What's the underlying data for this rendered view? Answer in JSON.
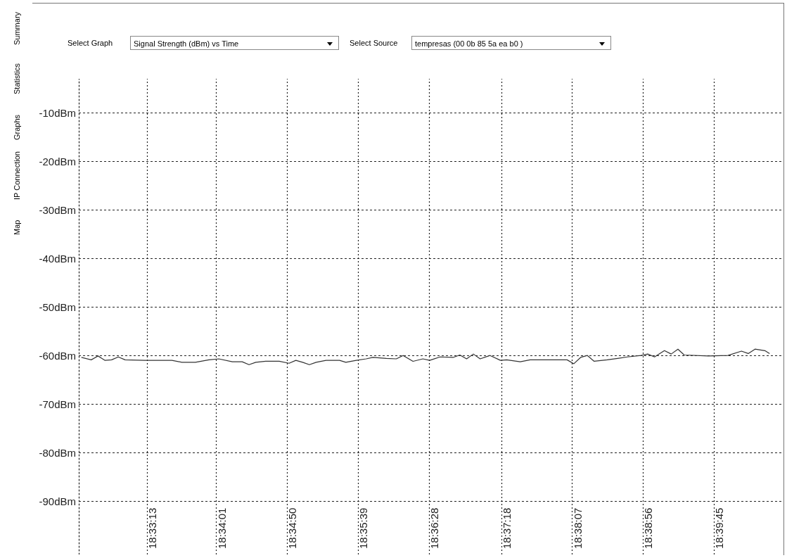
{
  "chart_data": {
    "type": "line",
    "annotations": [
      "Select Graph",
      "Signal Strength (dBm) vs Time",
      "Select Source",
      "tempresas (00 0b 85 5a ea b0 )",
      "Summary",
      "Statistics",
      "Graphs",
      "IP Connection",
      "Map"
    ],
    "x": [
      18.541,
      18.5429,
      18.5442,
      18.5455,
      18.5468,
      18.5481,
      18.5494,
      18.5532,
      18.5584,
      18.5603,
      18.5629,
      18.5655,
      18.5674,
      18.57,
      18.5719,
      18.5732,
      18.5745,
      18.5764,
      18.579,
      18.5809,
      18.5822,
      18.5835,
      18.5848,
      18.5861,
      18.588,
      18.5906,
      18.5918,
      18.5938,
      18.5957,
      18.597,
      18.5996,
      18.6015,
      18.6028,
      18.6047,
      18.6066,
      18.6079,
      18.6099,
      18.6124,
      18.6137,
      18.615,
      18.6163,
      18.6176,
      18.6195,
      18.6215,
      18.6227,
      18.6253,
      18.6272,
      18.6305,
      18.6343,
      18.6356,
      18.6369,
      18.6382,
      18.6395,
      18.642,
      18.644,
      18.6459,
      18.6485,
      18.6498,
      18.6511,
      18.653,
      18.6543,
      18.6556,
      18.6568,
      18.6614,
      18.6652,
      18.6678,
      18.6691,
      18.6704,
      18.6723,
      18.6732
    ],
    "series": [
      {
        "color": "#333333",
        "values": [
          -60.4,
          -60.9,
          -60.1,
          -61.0,
          -60.9,
          -60.3,
          -60.9,
          -61.0,
          -61.0,
          -61.4,
          -61.4,
          -60.9,
          -60.7,
          -61.3,
          -61.3,
          -61.9,
          -61.4,
          -61.2,
          -61.2,
          -61.6,
          -61.0,
          -61.4,
          -61.9,
          -61.4,
          -61.0,
          -61.0,
          -61.4,
          -61.0,
          -60.7,
          -60.4,
          -60.6,
          -60.7,
          -60.0,
          -61.2,
          -60.7,
          -61.0,
          -60.3,
          -60.4,
          -59.9,
          -60.7,
          -59.7,
          -60.7,
          -60.0,
          -61.0,
          -60.9,
          -61.3,
          -60.9,
          -60.9,
          -60.9,
          -61.7,
          -60.4,
          -60.0,
          -61.2,
          -60.9,
          -60.6,
          -60.3,
          -60.0,
          -59.7,
          -60.3,
          -59.0,
          -59.7,
          -58.7,
          -59.9,
          -60.1,
          -60.0,
          -59.1,
          -59.6,
          -58.7,
          -59.0,
          -59.6
        ]
      }
    ],
    "xlim": [
      18.5405,
      18.6756
    ],
    "xticks": [
      {
        "value": 18.553611,
        "label": "18:33:13"
      },
      {
        "value": 18.566944,
        "label": "18:34:01"
      },
      {
        "value": 18.580556,
        "label": "18:34:50"
      },
      {
        "value": 18.594167,
        "label": "18:35:39"
      },
      {
        "value": 18.607778,
        "label": "18:36:28"
      },
      {
        "value": 18.621667,
        "label": "18:37:18"
      },
      {
        "value": 18.635278,
        "label": "18:38:07"
      },
      {
        "value": 18.648889,
        "label": "18:38:56"
      },
      {
        "value": 18.6625,
        "label": "18:39:45"
      }
    ],
    "ylim": [
      -101,
      -3
    ],
    "yticks": [
      {
        "value": -10,
        "label": "-10dBm"
      },
      {
        "value": -20,
        "label": "-20dBm"
      },
      {
        "value": -30,
        "label": "-30dBm"
      },
      {
        "value": -40,
        "label": "-40dBm"
      },
      {
        "value": -50,
        "label": "-50dBm"
      },
      {
        "value": -60,
        "label": "-60dBm"
      },
      {
        "value": -70,
        "label": "-70dBm"
      },
      {
        "value": -80,
        "label": "-80dBm"
      },
      {
        "value": -90,
        "label": "-90dBm"
      }
    ],
    "grid": true,
    "marker": "none",
    "line_style": "solid"
  }
}
